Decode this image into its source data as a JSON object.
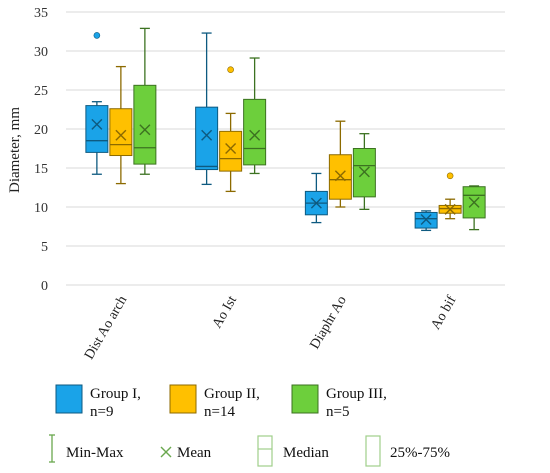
{
  "chart_data": {
    "type": "boxplot",
    "ylabel": "Diameter, mm",
    "ylim": [
      0,
      35
    ],
    "yticks": [
      0,
      5,
      10,
      15,
      20,
      25,
      30,
      35
    ],
    "grid": true,
    "categories": [
      "Dist Ao arch",
      "Ao Ist",
      "Diaphr Ao",
      "Ao bif"
    ],
    "series": [
      {
        "name": "Group I,\nn=9",
        "color": "#1aa3e8",
        "boxes": [
          {
            "min": 14.2,
            "q1": 17.0,
            "median": 18.5,
            "q3": 23.0,
            "max": 23.5,
            "mean": 20.6,
            "outliers": [
              32.0
            ]
          },
          {
            "min": 12.9,
            "q1": 14.8,
            "median": 15.2,
            "q3": 22.8,
            "max": 32.3,
            "mean": 19.2,
            "outliers": []
          },
          {
            "min": 8.0,
            "q1": 9.0,
            "median": 10.5,
            "q3": 12.0,
            "max": 14.3,
            "mean": 10.5,
            "outliers": []
          },
          {
            "min": 7.0,
            "q1": 7.3,
            "median": 8.5,
            "q3": 9.3,
            "max": 9.5,
            "mean": 8.4,
            "outliers": []
          }
        ]
      },
      {
        "name": "Group II,\nn=14",
        "color": "#ffc000",
        "boxes": [
          {
            "min": 13.0,
            "q1": 16.6,
            "median": 18.0,
            "q3": 22.6,
            "max": 28.0,
            "mean": 19.2,
            "outliers": []
          },
          {
            "min": 12.0,
            "q1": 14.6,
            "median": 16.2,
            "q3": 19.7,
            "max": 22.0,
            "mean": 17.5,
            "outliers": [
              27.6
            ]
          },
          {
            "min": 10.0,
            "q1": 11.0,
            "median": 13.5,
            "q3": 16.7,
            "max": 21.0,
            "mean": 14.0,
            "outliers": []
          },
          {
            "min": 8.5,
            "q1": 9.2,
            "median": 9.8,
            "q3": 10.2,
            "max": 11.0,
            "mean": 9.7,
            "outliers": [
              14.0
            ]
          }
        ]
      },
      {
        "name": "Group III,\nn=5",
        "color": "#6dcf3c",
        "boxes": [
          {
            "min": 14.2,
            "q1": 15.5,
            "median": 17.6,
            "q3": 25.6,
            "max": 32.9,
            "mean": 19.9,
            "outliers": []
          },
          {
            "min": 14.3,
            "q1": 15.4,
            "median": 17.5,
            "q3": 23.8,
            "max": 29.1,
            "mean": 19.2,
            "outliers": []
          },
          {
            "min": 9.7,
            "q1": 11.3,
            "median": 15.3,
            "q3": 17.5,
            "max": 19.4,
            "mean": 14.5,
            "outliers": []
          },
          {
            "min": 7.1,
            "q1": 8.6,
            "median": 11.5,
            "q3": 12.6,
            "max": 12.7,
            "mean": 10.6,
            "outliers": []
          }
        ]
      }
    ],
    "key": {
      "minmax": "Min-Max",
      "mean": "Mean",
      "median": "Median",
      "iqr": "25%-75%"
    }
  }
}
